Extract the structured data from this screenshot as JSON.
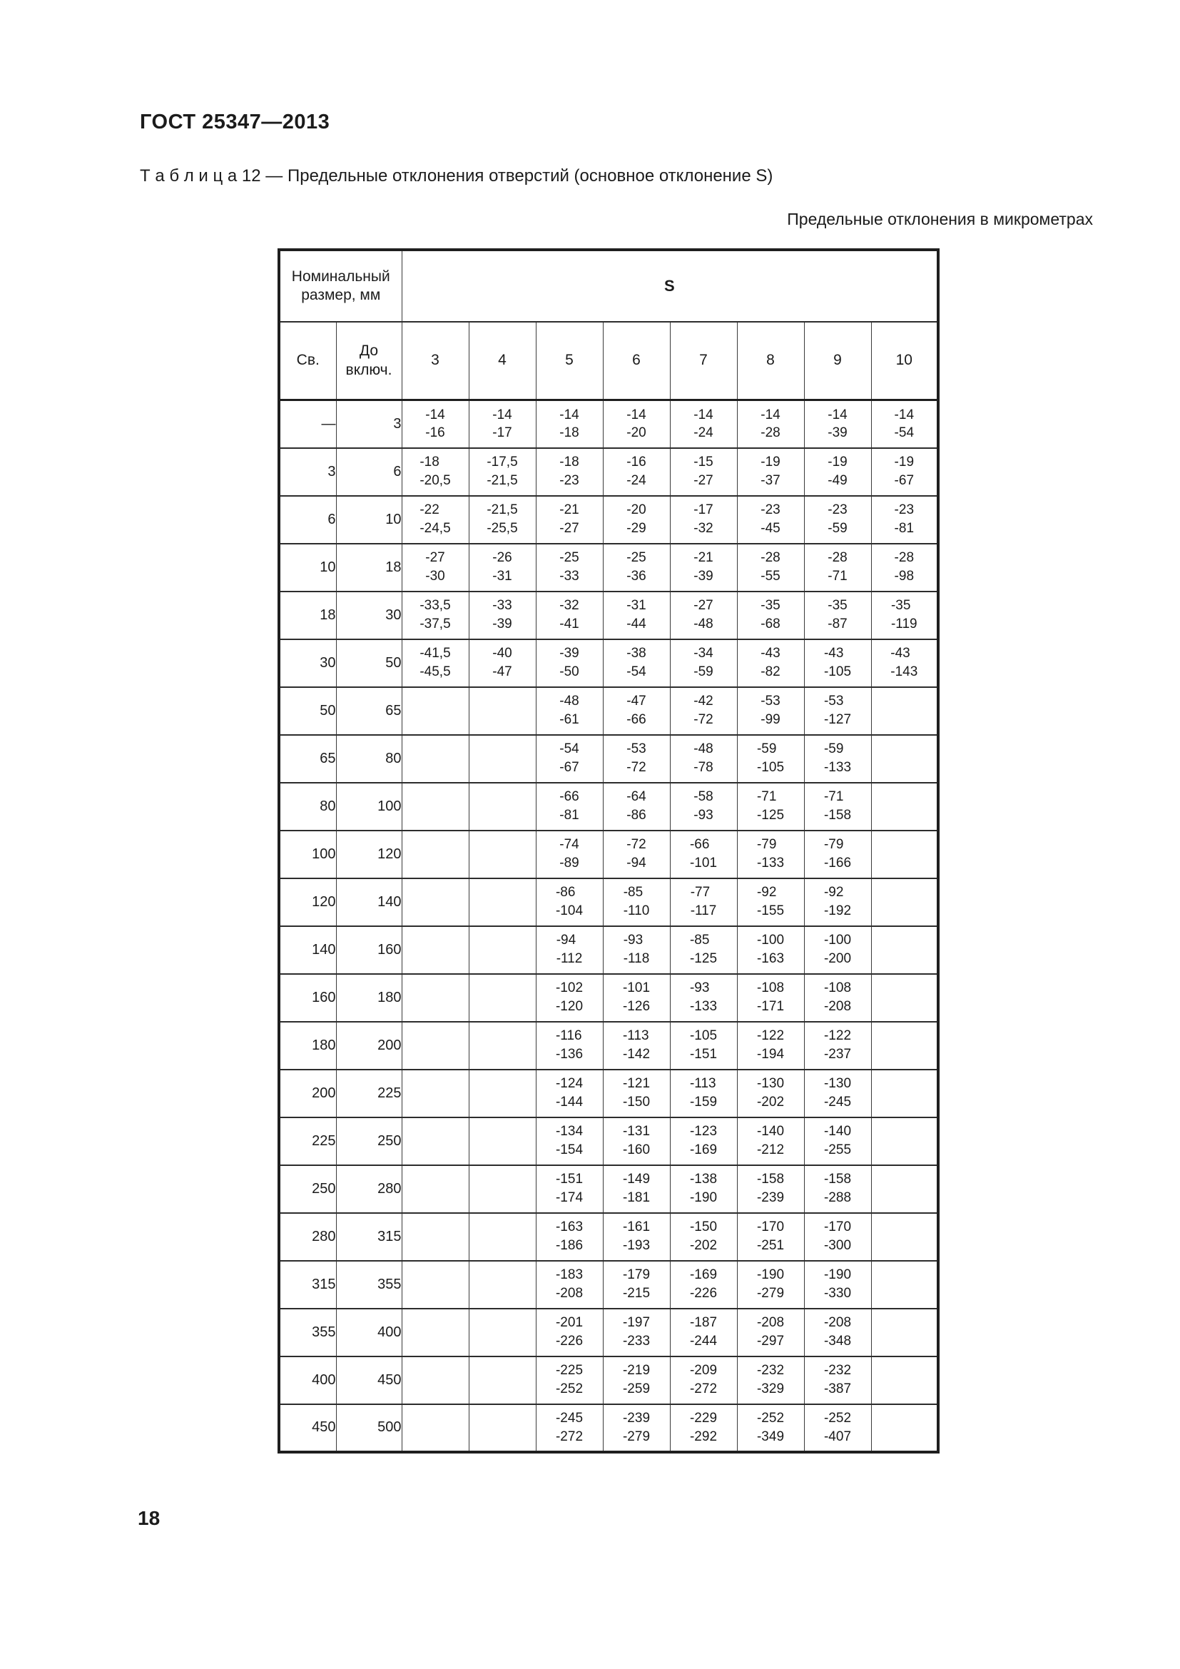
{
  "page": {
    "doc_code": "ГОСТ 25347—2013",
    "table_caption": "Т а б л и ц а  12 — Предельные отклонения отверстий (основное отклонение S)",
    "units_note": "Предельные отклонения в микрометрах",
    "page_number": "18"
  },
  "table": {
    "nominal_size_header": "Номинальный размер, мм",
    "over_label": "Св.",
    "upto_label": "До включ.",
    "deviation_group_label": "S",
    "grade_labels": [
      "3",
      "4",
      "5",
      "6",
      "7",
      "8",
      "9",
      "10"
    ],
    "rows": [
      {
        "over": "—",
        "upto": "3",
        "cells": [
          [
            "-14",
            "-16"
          ],
          [
            "-14",
            "-17"
          ],
          [
            "-14",
            "-18"
          ],
          [
            "-14",
            "-20"
          ],
          [
            "-14",
            "-24"
          ],
          [
            "-14",
            "-28"
          ],
          [
            "-14",
            "-39"
          ],
          [
            "-14",
            "-54"
          ]
        ]
      },
      {
        "over": "3",
        "upto": "6",
        "cells": [
          [
            "-18",
            "-20,5"
          ],
          [
            "-17,5",
            "-21,5"
          ],
          [
            "-18",
            "-23"
          ],
          [
            "-16",
            "-24"
          ],
          [
            "-15",
            "-27"
          ],
          [
            "-19",
            "-37"
          ],
          [
            "-19",
            "-49"
          ],
          [
            "-19",
            "-67"
          ]
        ]
      },
      {
        "over": "6",
        "upto": "10",
        "cells": [
          [
            "-22",
            "-24,5"
          ],
          [
            "-21,5",
            "-25,5"
          ],
          [
            "-21",
            "-27"
          ],
          [
            "-20",
            "-29"
          ],
          [
            "-17",
            "-32"
          ],
          [
            "-23",
            "-45"
          ],
          [
            "-23",
            "-59"
          ],
          [
            "-23",
            "-81"
          ]
        ]
      },
      {
        "over": "10",
        "upto": "18",
        "cells": [
          [
            "-27",
            "-30"
          ],
          [
            "-26",
            "-31"
          ],
          [
            "-25",
            "-33"
          ],
          [
            "-25",
            "-36"
          ],
          [
            "-21",
            "-39"
          ],
          [
            "-28",
            "-55"
          ],
          [
            "-28",
            "-71"
          ],
          [
            "-28",
            "-98"
          ]
        ]
      },
      {
        "over": "18",
        "upto": "30",
        "cells": [
          [
            "-33,5",
            "-37,5"
          ],
          [
            "-33",
            "-39"
          ],
          [
            "-32",
            "-41"
          ],
          [
            "-31",
            "-44"
          ],
          [
            "-27",
            "-48"
          ],
          [
            "-35",
            "-68"
          ],
          [
            "-35",
            "-87"
          ],
          [
            "-35",
            "-119"
          ]
        ]
      },
      {
        "over": "30",
        "upto": "50",
        "cells": [
          [
            "-41,5",
            "-45,5"
          ],
          [
            "-40",
            "-47"
          ],
          [
            "-39",
            "-50"
          ],
          [
            "-38",
            "-54"
          ],
          [
            "-34",
            "-59"
          ],
          [
            "-43",
            "-82"
          ],
          [
            "-43",
            "-105"
          ],
          [
            "-43",
            "-143"
          ]
        ]
      },
      {
        "over": "50",
        "upto": "65",
        "cells": [
          null,
          null,
          [
            "-48",
            "-61"
          ],
          [
            "-47",
            "-66"
          ],
          [
            "-42",
            "-72"
          ],
          [
            "-53",
            "-99"
          ],
          [
            "-53",
            "-127"
          ],
          null
        ]
      },
      {
        "over": "65",
        "upto": "80",
        "cells": [
          null,
          null,
          [
            "-54",
            "-67"
          ],
          [
            "-53",
            "-72"
          ],
          [
            "-48",
            "-78"
          ],
          [
            "-59",
            "-105"
          ],
          [
            "-59",
            "-133"
          ],
          null
        ]
      },
      {
        "over": "80",
        "upto": "100",
        "cells": [
          null,
          null,
          [
            "-66",
            "-81"
          ],
          [
            "-64",
            "-86"
          ],
          [
            "-58",
            "-93"
          ],
          [
            "-71",
            "-125"
          ],
          [
            "-71",
            "-158"
          ],
          null
        ]
      },
      {
        "over": "100",
        "upto": "120",
        "cells": [
          null,
          null,
          [
            "-74",
            "-89"
          ],
          [
            "-72",
            "-94"
          ],
          [
            "-66",
            "-101"
          ],
          [
            "-79",
            "-133"
          ],
          [
            "-79",
            "-166"
          ],
          null
        ]
      },
      {
        "over": "120",
        "upto": "140",
        "cells": [
          null,
          null,
          [
            "-86",
            "-104"
          ],
          [
            "-85",
            "-110"
          ],
          [
            "-77",
            "-117"
          ],
          [
            "-92",
            "-155"
          ],
          [
            "-92",
            "-192"
          ],
          null
        ]
      },
      {
        "over": "140",
        "upto": "160",
        "cells": [
          null,
          null,
          [
            "-94",
            "-112"
          ],
          [
            "-93",
            "-118"
          ],
          [
            "-85",
            "-125"
          ],
          [
            "-100",
            "-163"
          ],
          [
            "-100",
            "-200"
          ],
          null
        ]
      },
      {
        "over": "160",
        "upto": "180",
        "cells": [
          null,
          null,
          [
            "-102",
            "-120"
          ],
          [
            "-101",
            "-126"
          ],
          [
            "-93",
            "-133"
          ],
          [
            "-108",
            "-171"
          ],
          [
            "-108",
            "-208"
          ],
          null
        ]
      },
      {
        "over": "180",
        "upto": "200",
        "cells": [
          null,
          null,
          [
            "-116",
            "-136"
          ],
          [
            "-113",
            "-142"
          ],
          [
            "-105",
            "-151"
          ],
          [
            "-122",
            "-194"
          ],
          [
            "-122",
            "-237"
          ],
          null
        ]
      },
      {
        "over": "200",
        "upto": "225",
        "cells": [
          null,
          null,
          [
            "-124",
            "-144"
          ],
          [
            "-121",
            "-150"
          ],
          [
            "-113",
            "-159"
          ],
          [
            "-130",
            "-202"
          ],
          [
            "-130",
            "-245"
          ],
          null
        ]
      },
      {
        "over": "225",
        "upto": "250",
        "cells": [
          null,
          null,
          [
            "-134",
            "-154"
          ],
          [
            "-131",
            "-160"
          ],
          [
            "-123",
            "-169"
          ],
          [
            "-140",
            "-212"
          ],
          [
            "-140",
            "-255"
          ],
          null
        ]
      },
      {
        "over": "250",
        "upto": "280",
        "cells": [
          null,
          null,
          [
            "-151",
            "-174"
          ],
          [
            "-149",
            "-181"
          ],
          [
            "-138",
            "-190"
          ],
          [
            "-158",
            "-239"
          ],
          [
            "-158",
            "-288"
          ],
          null
        ]
      },
      {
        "over": "280",
        "upto": "315",
        "cells": [
          null,
          null,
          [
            "-163",
            "-186"
          ],
          [
            "-161",
            "-193"
          ],
          [
            "-150",
            "-202"
          ],
          [
            "-170",
            "-251"
          ],
          [
            "-170",
            "-300"
          ],
          null
        ]
      },
      {
        "over": "315",
        "upto": "355",
        "cells": [
          null,
          null,
          [
            "-183",
            "-208"
          ],
          [
            "-179",
            "-215"
          ],
          [
            "-169",
            "-226"
          ],
          [
            "-190",
            "-279"
          ],
          [
            "-190",
            "-330"
          ],
          null
        ]
      },
      {
        "over": "355",
        "upto": "400",
        "cells": [
          null,
          null,
          [
            "-201",
            "-226"
          ],
          [
            "-197",
            "-233"
          ],
          [
            "-187",
            "-244"
          ],
          [
            "-208",
            "-297"
          ],
          [
            "-208",
            "-348"
          ],
          null
        ]
      },
      {
        "over": "400",
        "upto": "450",
        "cells": [
          null,
          null,
          [
            "-225",
            "-252"
          ],
          [
            "-219",
            "-259"
          ],
          [
            "-209",
            "-272"
          ],
          [
            "-232",
            "-329"
          ],
          [
            "-232",
            "-387"
          ],
          null
        ]
      },
      {
        "over": "450",
        "upto": "500",
        "cells": [
          null,
          null,
          [
            "-245",
            "-272"
          ],
          [
            "-239",
            "-279"
          ],
          [
            "-229",
            "-292"
          ],
          [
            "-252",
            "-349"
          ],
          [
            "-252",
            "-407"
          ],
          null
        ]
      }
    ]
  }
}
